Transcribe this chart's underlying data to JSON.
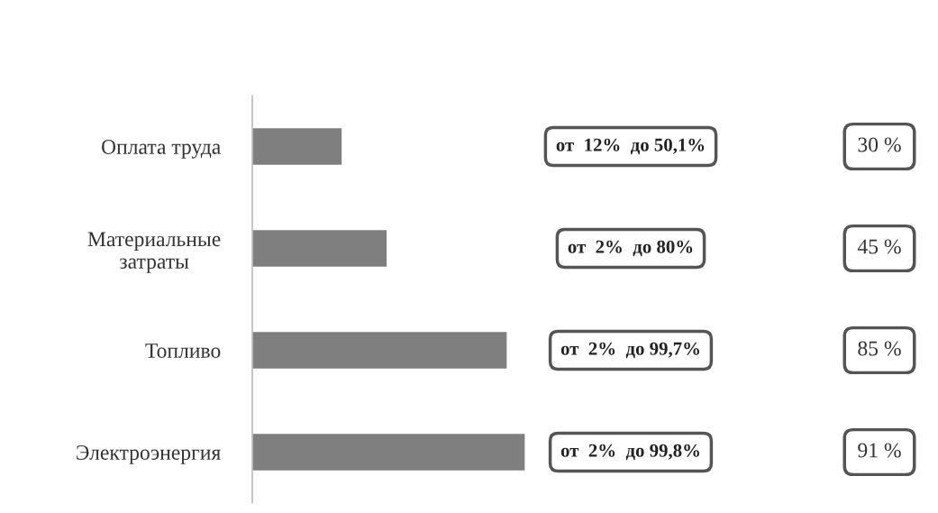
{
  "chart_data": {
    "type": "bar",
    "orientation": "horizontal",
    "categories": [
      "Оплата труда",
      "Материальные\nзатраты",
      "Топливо",
      "Электроэнергия"
    ],
    "values": [
      30,
      45,
      85,
      91
    ],
    "value_labels": [
      "30 %",
      "45 %",
      "85 %",
      "91 %"
    ],
    "color": "#7f7f7f",
    "tick_labels": "y",
    "grid": false,
    "annotations": [
      "от  12%  до 50,1%",
      "от  2%  до 80%",
      "от  2%  до 99,7%",
      "от  2%  до 99,8%"
    ]
  }
}
